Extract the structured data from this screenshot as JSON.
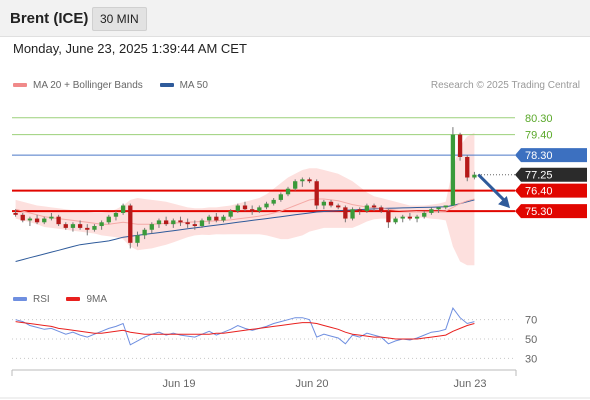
{
  "header": {
    "title": "Brent (ICE)",
    "timeframe": "30 MIN"
  },
  "datetime": "Monday, June 23, 2025 1:39:44 AM CET",
  "legend": {
    "items": [
      {
        "label": "MA 20 + Bollinger Bands",
        "color": "#f08a8a"
      },
      {
        "label": "MA 50",
        "color": "#2f5b9b"
      }
    ]
  },
  "copyright": "Research © 2025 Trading Central",
  "rsi_legend": {
    "items": [
      {
        "label": "RSI",
        "color": "#6f8fe0"
      },
      {
        "label": "9MA",
        "color": "#e8201e"
      }
    ]
  },
  "chart_data": [
    {
      "type": "candlestick",
      "title": "Brent (ICE)",
      "x_ticks": [
        "Jun 19",
        "Jun 20",
        "Jun 23"
      ],
      "ylim": [
        71.5,
        81.2
      ],
      "levels": [
        {
          "label": "80.30",
          "value": 80.3,
          "kind": "green"
        },
        {
          "label": "79.40",
          "value": 79.4,
          "kind": "green"
        },
        {
          "label": "78.30",
          "value": 78.3,
          "kind": "blue"
        },
        {
          "label": "77.25",
          "value": 77.25,
          "kind": "current"
        },
        {
          "label": "76.40",
          "value": 76.4,
          "kind": "red"
        },
        {
          "label": "75.30",
          "value": 75.3,
          "kind": "red"
        }
      ],
      "ohlc": [
        [
          75.2,
          75.4,
          75.0,
          75.1
        ],
        [
          75.1,
          75.2,
          74.7,
          74.8
        ],
        [
          74.8,
          75.0,
          74.5,
          74.9
        ],
        [
          74.9,
          75.1,
          74.6,
          74.7
        ],
        [
          74.7,
          75.0,
          74.6,
          74.9
        ],
        [
          74.9,
          75.2,
          74.8,
          75.0
        ],
        [
          75.0,
          75.1,
          74.5,
          74.6
        ],
        [
          74.6,
          74.7,
          74.3,
          74.4
        ],
        [
          74.4,
          74.7,
          74.2,
          74.6
        ],
        [
          74.6,
          74.8,
          74.3,
          74.4
        ],
        [
          74.4,
          74.6,
          74.0,
          74.3
        ],
        [
          74.3,
          74.6,
          74.2,
          74.5
        ],
        [
          74.5,
          74.8,
          74.3,
          74.7
        ],
        [
          74.7,
          75.1,
          74.6,
          75.0
        ],
        [
          75.0,
          75.3,
          74.8,
          75.2
        ],
        [
          75.2,
          75.7,
          75.1,
          75.6
        ],
        [
          75.6,
          75.7,
          73.3,
          73.6
        ],
        [
          73.6,
          74.2,
          73.4,
          74.0
        ],
        [
          74.0,
          74.4,
          73.8,
          74.3
        ],
        [
          74.3,
          74.7,
          74.1,
          74.6
        ],
        [
          74.6,
          74.9,
          74.4,
          74.8
        ],
        [
          74.8,
          75.0,
          74.5,
          74.6
        ],
        [
          74.6,
          74.9,
          74.4,
          74.8
        ],
        [
          74.8,
          75.0,
          74.5,
          74.7
        ],
        [
          74.7,
          74.9,
          74.4,
          74.6
        ],
        [
          74.6,
          74.8,
          74.3,
          74.5
        ],
        [
          74.5,
          74.9,
          74.4,
          74.8
        ],
        [
          74.8,
          75.1,
          74.6,
          75.0
        ],
        [
          75.0,
          75.2,
          74.7,
          74.8
        ],
        [
          74.8,
          75.1,
          74.7,
          75.0
        ],
        [
          75.0,
          75.4,
          74.9,
          75.3
        ],
        [
          75.3,
          75.7,
          75.2,
          75.6
        ],
        [
          75.6,
          75.8,
          75.3,
          75.4
        ],
        [
          75.4,
          75.6,
          75.1,
          75.3
        ],
        [
          75.3,
          75.6,
          75.2,
          75.5
        ],
        [
          75.5,
          75.8,
          75.4,
          75.7
        ],
        [
          75.7,
          76.0,
          75.6,
          75.9
        ],
        [
          75.9,
          76.3,
          75.8,
          76.2
        ],
        [
          76.2,
          76.6,
          76.1,
          76.5
        ],
        [
          76.5,
          77.0,
          76.4,
          76.9
        ],
        [
          76.9,
          77.1,
          76.6,
          77.0
        ],
        [
          77.0,
          77.1,
          76.8,
          76.9
        ],
        [
          76.9,
          77.0,
          75.4,
          75.6
        ],
        [
          75.6,
          75.9,
          75.4,
          75.8
        ],
        [
          75.8,
          75.9,
          75.5,
          75.6
        ],
        [
          75.6,
          75.7,
          75.4,
          75.5
        ],
        [
          75.5,
          75.6,
          74.7,
          74.9
        ],
        [
          74.9,
          75.5,
          74.8,
          75.4
        ],
        [
          75.4,
          75.5,
          75.1,
          75.3
        ],
        [
          75.3,
          75.7,
          75.2,
          75.6
        ],
        [
          75.6,
          75.7,
          75.3,
          75.5
        ],
        [
          75.5,
          75.6,
          75.2,
          75.3
        ],
        [
          75.3,
          75.4,
          74.4,
          74.7
        ],
        [
          74.7,
          75.0,
          74.6,
          74.9
        ],
        [
          74.9,
          75.1,
          74.7,
          75.0
        ],
        [
          75.0,
          75.2,
          74.8,
          74.9
        ],
        [
          74.9,
          75.1,
          74.7,
          75.0
        ],
        [
          75.0,
          75.3,
          74.9,
          75.2
        ],
        [
          75.2,
          75.5,
          75.1,
          75.4
        ],
        [
          75.4,
          75.5,
          75.2,
          75.5
        ],
        [
          75.5,
          75.6,
          75.4,
          75.6
        ],
        [
          75.6,
          79.8,
          75.6,
          79.4
        ],
        [
          79.4,
          79.5,
          78.0,
          78.2
        ],
        [
          78.2,
          78.3,
          76.9,
          77.1
        ],
        [
          77.1,
          77.4,
          77.0,
          77.25
        ]
      ],
      "ma20": [
        75.4,
        75.3,
        75.2,
        75.1,
        75.0,
        74.95,
        74.9,
        74.85,
        74.8,
        74.75,
        74.7,
        74.65,
        74.6,
        74.6,
        74.65,
        74.7,
        74.65,
        74.6,
        74.6,
        74.6,
        74.62,
        74.64,
        74.66,
        74.68,
        74.7,
        74.72,
        74.74,
        74.76,
        74.78,
        74.8,
        74.83,
        74.88,
        74.93,
        74.98,
        75.03,
        75.1,
        75.2,
        75.3,
        75.45,
        75.6,
        75.75,
        75.9,
        75.95,
        75.95,
        75.9,
        75.85,
        75.75,
        75.65,
        75.58,
        75.52,
        75.48,
        75.45,
        75.4,
        75.35,
        75.32,
        75.3,
        75.28,
        75.27,
        75.27,
        75.28,
        75.3,
        75.5,
        75.7,
        75.85,
        75.95
      ],
      "bb_upper": [
        75.9,
        75.8,
        75.7,
        75.6,
        75.55,
        75.5,
        75.45,
        75.4,
        75.35,
        75.3,
        75.25,
        75.2,
        75.2,
        75.25,
        75.4,
        75.6,
        75.9,
        76.0,
        75.95,
        75.9,
        75.85,
        75.8,
        75.7,
        75.6,
        75.5,
        75.45,
        75.45,
        75.5,
        75.5,
        75.55,
        75.6,
        75.7,
        75.8,
        75.9,
        76.0,
        76.2,
        76.5,
        76.8,
        77.1,
        77.3,
        77.5,
        77.6,
        77.6,
        77.5,
        77.4,
        77.3,
        77.1,
        76.9,
        76.6,
        76.3,
        76.1,
        76.0,
        75.9,
        75.8,
        75.7,
        75.6,
        75.6,
        75.6,
        75.65,
        75.7,
        75.8,
        77.6,
        78.8,
        79.3,
        79.5
      ],
      "bb_lower": [
        74.9,
        74.8,
        74.7,
        74.6,
        74.45,
        74.4,
        74.35,
        74.3,
        74.25,
        74.2,
        74.15,
        74.1,
        74.0,
        73.95,
        73.9,
        73.8,
        73.4,
        73.2,
        73.25,
        73.3,
        73.4,
        73.5,
        73.62,
        73.76,
        73.9,
        74.0,
        74.03,
        74.02,
        74.06,
        74.05,
        74.06,
        74.06,
        74.06,
        74.06,
        74.06,
        74.0,
        73.9,
        73.8,
        73.8,
        73.9,
        74.0,
        74.2,
        74.3,
        74.4,
        74.4,
        74.4,
        74.4,
        74.4,
        74.56,
        74.74,
        74.86,
        74.9,
        74.9,
        74.9,
        74.94,
        75.0,
        74.96,
        74.94,
        74.89,
        74.86,
        74.8,
        73.4,
        72.6,
        72.4,
        72.4
      ],
      "ma50": [
        72.6,
        72.7,
        72.8,
        72.9,
        73.0,
        73.1,
        73.2,
        73.3,
        73.4,
        73.5,
        73.55,
        73.6,
        73.65,
        73.7,
        73.8,
        73.9,
        73.95,
        74.0,
        74.05,
        74.1,
        74.15,
        74.2,
        74.25,
        74.3,
        74.35,
        74.4,
        74.45,
        74.5,
        74.55,
        74.6,
        74.65,
        74.7,
        74.75,
        74.8,
        74.85,
        74.9,
        74.95,
        75.0,
        75.05,
        75.1,
        75.15,
        75.2,
        75.25,
        75.28,
        75.3,
        75.32,
        75.34,
        75.36,
        75.38,
        75.4,
        75.42,
        75.44,
        75.45,
        75.46,
        75.47,
        75.48,
        75.49,
        75.5,
        75.51,
        75.52,
        75.53,
        75.6,
        75.7,
        75.8,
        75.9
      ],
      "forecast_arrow": {
        "from": 77.25,
        "to": 75.3
      }
    },
    {
      "type": "line",
      "title": "RSI",
      "ylim": [
        20,
        80
      ],
      "y_ticks": [
        70,
        50,
        30
      ],
      "series": [
        {
          "name": "RSI",
          "values": [
            70,
            68,
            64,
            62,
            60,
            61,
            58,
            55,
            57,
            54,
            52,
            55,
            58,
            61,
            63,
            66,
            44,
            48,
            52,
            55,
            57,
            54,
            56,
            54,
            53,
            52,
            55,
            58,
            54,
            57,
            60,
            64,
            61,
            59,
            61,
            63,
            66,
            68,
            70,
            72,
            72,
            70,
            52,
            55,
            53,
            51,
            45,
            54,
            52,
            56,
            54,
            52,
            45,
            48,
            50,
            49,
            51,
            54,
            57,
            58,
            60,
            82,
            72,
            66,
            68
          ]
        },
        {
          "name": "9MA",
          "values": [
            68,
            67,
            66,
            65,
            64,
            63,
            61,
            60,
            59,
            58,
            57,
            56,
            56,
            57,
            58,
            59,
            57,
            56,
            55,
            55,
            55,
            55,
            55,
            55,
            55,
            55,
            55,
            55,
            56,
            56,
            57,
            58,
            59,
            60,
            61,
            62,
            63,
            64,
            65,
            66,
            67,
            67,
            66,
            64,
            62,
            60,
            57,
            55,
            54,
            53,
            52,
            52,
            51,
            50,
            50,
            50,
            50,
            51,
            52,
            53,
            54,
            58,
            61,
            64,
            66
          ]
        }
      ]
    }
  ]
}
